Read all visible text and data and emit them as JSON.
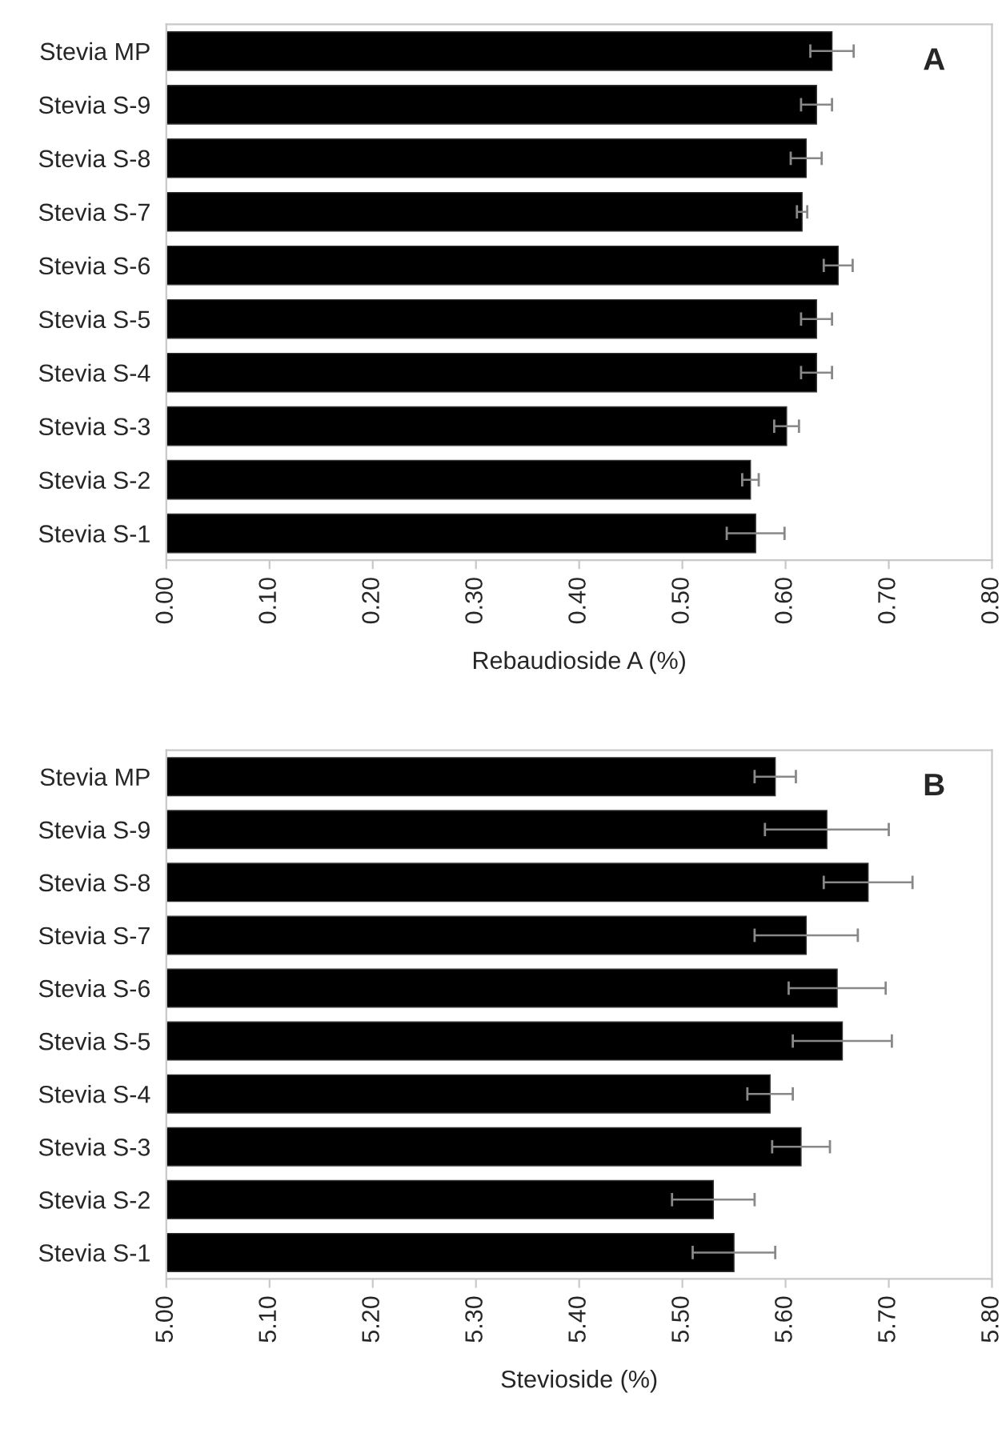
{
  "chart_data": [
    {
      "type": "bar",
      "orientation": "horizontal",
      "xlabel": "Rebaudioside A (%)",
      "annotations": [
        "A"
      ],
      "categories": [
        "Stevia MP",
        "Stevia S-9",
        "Stevia S-8",
        "Stevia S-7",
        "Stevia S-6",
        "Stevia S-5",
        "Stevia S-4",
        "Stevia S-3",
        "Stevia S-2",
        "Stevia S-1"
      ],
      "values": [
        0.645,
        0.63,
        0.62,
        0.616,
        0.651,
        0.63,
        0.63,
        0.601,
        0.566,
        0.571
      ],
      "errors": [
        0.021,
        0.015,
        0.015,
        0.005,
        0.014,
        0.015,
        0.015,
        0.012,
        0.008,
        0.028
      ],
      "color": "#000000",
      "xlim": [
        0,
        0.8
      ],
      "xticks": [
        {
          "value": 0,
          "label": "0.00"
        },
        {
          "value": 0.1,
          "label": "0.10"
        },
        {
          "value": 0.2,
          "label": "0.20"
        },
        {
          "value": 0.3,
          "label": "0.30"
        },
        {
          "value": 0.4,
          "label": "0.40"
        },
        {
          "value": 0.5,
          "label": "0.50"
        },
        {
          "value": 0.6,
          "label": "0.60"
        },
        {
          "value": 0.7,
          "label": "0.70"
        },
        {
          "value": 0.8,
          "label": "0.80"
        }
      ],
      "grid": false,
      "legend": false
    },
    {
      "type": "bar",
      "orientation": "horizontal",
      "xlabel": "Stevioside (%)",
      "annotations": [
        "B"
      ],
      "categories": [
        "Stevia MP",
        "Stevia S-9",
        "Stevia S-8",
        "Stevia S-7",
        "Stevia S-6",
        "Stevia S-5",
        "Stevia S-4",
        "Stevia S-3",
        "Stevia S-2",
        "Stevia S-1"
      ],
      "values": [
        5.59,
        5.64,
        5.68,
        5.62,
        5.65,
        5.655,
        5.585,
        5.615,
        5.53,
        5.55
      ],
      "errors": [
        0.02,
        0.06,
        0.043,
        0.05,
        0.047,
        0.048,
        0.022,
        0.028,
        0.04,
        0.04
      ],
      "color": "#000000",
      "xlim": [
        5.0,
        5.8
      ],
      "xticks": [
        {
          "value": 5.0,
          "label": "5.00"
        },
        {
          "value": 5.1,
          "label": "5.10"
        },
        {
          "value": 5.2,
          "label": "5.20"
        },
        {
          "value": 5.3,
          "label": "5.30"
        },
        {
          "value": 5.4,
          "label": "5.40"
        },
        {
          "value": 5.5,
          "label": "5.50"
        },
        {
          "value": 5.6,
          "label": "5.60"
        },
        {
          "value": 5.7,
          "label": "5.70"
        },
        {
          "value": 5.8,
          "label": "5.80"
        }
      ],
      "grid": false,
      "legend": false
    }
  ]
}
